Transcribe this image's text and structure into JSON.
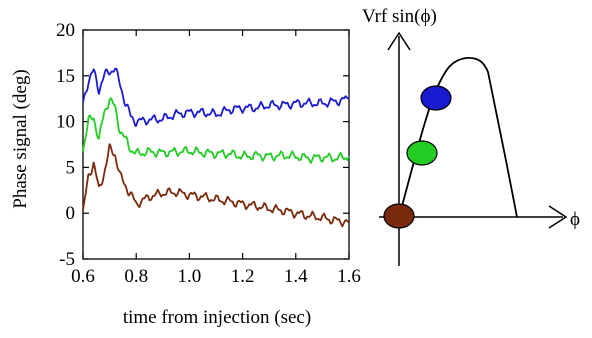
{
  "chart_data": [
    {
      "type": "line",
      "xlabel": "time from injection (sec)",
      "ylabel": "Phase signal (deg)",
      "xlim": [
        0.6,
        1.6
      ],
      "ylim": [
        -5,
        20
      ],
      "x_ticks": [
        "0.6",
        "0.8",
        "1.0",
        "1.2",
        "1.4",
        "1.6"
      ],
      "y_ticks": [
        "-5",
        "0",
        "5",
        "10",
        "15",
        "20"
      ],
      "grid": false,
      "legend": "none",
      "series": [
        {
          "color": "#1a1ad0",
          "x": [
            0.6,
            0.62,
            0.64,
            0.66,
            0.68,
            0.7,
            0.72,
            0.74,
            0.76,
            0.78,
            0.8,
            0.85,
            0.9,
            0.95,
            1.0,
            1.05,
            1.1,
            1.15,
            1.2,
            1.25,
            1.3,
            1.35,
            1.4,
            1.45,
            1.5,
            1.55,
            1.6
          ],
          "y": [
            12.0,
            14.5,
            15.5,
            13.5,
            15.0,
            15.5,
            15.8,
            14.0,
            12.0,
            10.5,
            10.0,
            10.2,
            10.3,
            10.8,
            11.0,
            11.0,
            10.8,
            11.3,
            11.5,
            11.5,
            11.8,
            11.8,
            12.0,
            12.0,
            12.0,
            12.2,
            12.5
          ]
        },
        {
          "color": "#22cc22",
          "x": [
            0.6,
            0.62,
            0.64,
            0.66,
            0.68,
            0.7,
            0.72,
            0.74,
            0.76,
            0.78,
            0.8,
            0.85,
            0.9,
            0.95,
            1.0,
            1.05,
            1.1,
            1.15,
            1.2,
            1.25,
            1.3,
            1.35,
            1.4,
            1.45,
            1.5,
            1.55,
            1.6
          ],
          "y": [
            7.0,
            10.0,
            10.5,
            8.0,
            11.0,
            12.5,
            11.5,
            9.0,
            8.0,
            7.0,
            6.5,
            6.7,
            6.6,
            6.7,
            6.8,
            6.6,
            6.5,
            6.5,
            6.2,
            6.3,
            6.2,
            6.3,
            6.2,
            6.0,
            6.1,
            6.0,
            6.2
          ]
        },
        {
          "color": "#7a2a0a",
          "x": [
            0.6,
            0.62,
            0.64,
            0.66,
            0.68,
            0.7,
            0.72,
            0.74,
            0.76,
            0.78,
            0.8,
            0.85,
            0.9,
            0.95,
            1.0,
            1.05,
            1.1,
            1.15,
            1.2,
            1.25,
            1.3,
            1.35,
            1.4,
            1.45,
            1.5,
            1.55,
            1.6
          ],
          "y": [
            0.0,
            4.0,
            5.5,
            2.5,
            4.5,
            7.0,
            6.5,
            4.0,
            3.0,
            2.0,
            1.0,
            1.8,
            2.2,
            2.3,
            2.0,
            1.8,
            1.5,
            1.3,
            1.0,
            0.8,
            0.5,
            0.3,
            0.0,
            -0.3,
            -0.5,
            -0.8,
            -1.0
          ]
        }
      ]
    },
    {
      "type": "diagram",
      "ylabel": "Vrf sin(ϕ)",
      "xlabel": "ϕ",
      "curve_color": "#000000",
      "markers": [
        {
          "color": "#7a2a0a"
        },
        {
          "color": "#22cc22"
        },
        {
          "color": "#1a1ad0"
        }
      ]
    }
  ]
}
